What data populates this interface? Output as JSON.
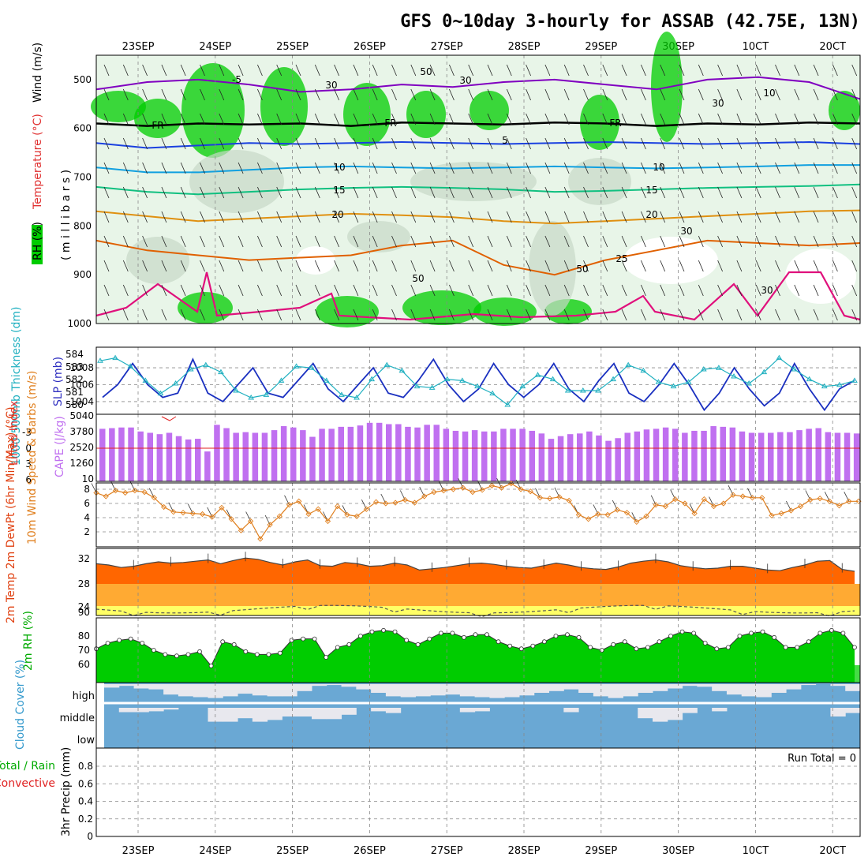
{
  "title": "GFS 0~10day 3-hourly for ASSAB (42.75E, 13N)",
  "dates": [
    "23SEP",
    "24SEP",
    "25SEP",
    "26SEP",
    "27SEP",
    "28SEP",
    "29SEP",
    "30SEP",
    "1OCT",
    "2OCT"
  ],
  "date_labels_display": [
    "23SEP",
    "24SEP",
    "25SEP",
    "26SEP",
    "27SEP",
    "28SEP",
    "29SEP",
    "30SEP",
    "10CT",
    "20CT"
  ],
  "colors": {
    "rh_green": "#00cc00",
    "rh_light": "#e8f5e8",
    "rh_gray": "#c8d8c8",
    "temp_m5_purple": "#8000c0",
    "temp_fr": "#000000",
    "temp_5": "#1a40e0",
    "temp_10": "#10a0e0",
    "temp_15": "#10c080",
    "temp_20": "#e09010",
    "temp_25": "#e06000",
    "rh_contour": "#e0107c",
    "slp": "#1a30c0",
    "thickness": "#20b0c0",
    "cape_bar": "#c070f0",
    "lifted": "#e02020",
    "wind": "#e08020",
    "temp_fill": "#ff6600",
    "dew_fill": "#ffaa33",
    "low_fill": "#ffff66",
    "rh2m": "#00cc00",
    "rh2m_light": "#33ee33",
    "cloud": "#6aa8d4",
    "cloud_gap": "#e8e8ee"
  },
  "chart_data": [
    {
      "panel": "upper-air",
      "type": "contour",
      "ylabel_parts": [
        "RH (%)",
        "Temperature (°C)",
        "Wind (m/s)"
      ],
      "axis_label": "( m i l l i b a r s )",
      "y_ticks": [
        500,
        600,
        700,
        800,
        900,
        1000
      ],
      "ylim": [
        450,
        1000
      ],
      "contour_labels": [
        "-5",
        "FR",
        "FR",
        "FR",
        "5",
        "10",
        "10",
        "15",
        "15",
        "20",
        "20",
        "25",
        "30",
        "30",
        "50",
        "50",
        "30",
        "30",
        "50",
        "30",
        "10"
      ],
      "isotherms": [
        {
          "name": "-5",
          "level": [
            520,
            505,
            500,
            510,
            525,
            520,
            510,
            515,
            505,
            500,
            510,
            520,
            500,
            495,
            505,
            540
          ]
        },
        {
          "name": "FR",
          "level": [
            590,
            595,
            590,
            592,
            590,
            595,
            588,
            590,
            592,
            588,
            590,
            595,
            590,
            592,
            588,
            590
          ]
        },
        {
          "name": "5",
          "level": [
            630,
            640,
            635,
            630,
            632,
            630,
            628,
            630,
            632,
            630,
            628,
            630,
            632,
            630,
            628,
            632
          ]
        },
        {
          "name": "10",
          "level": [
            680,
            690,
            690,
            685,
            680,
            678,
            680,
            682,
            680,
            678,
            680,
            682,
            680,
            678,
            675,
            675
          ]
        },
        {
          "name": "15",
          "level": [
            720,
            730,
            735,
            730,
            725,
            722,
            720,
            722,
            725,
            730,
            728,
            725,
            722,
            720,
            718,
            715
          ]
        },
        {
          "name": "20",
          "level": [
            770,
            780,
            790,
            785,
            780,
            775,
            778,
            782,
            790,
            795,
            790,
            785,
            780,
            775,
            770,
            768
          ]
        },
        {
          "name": "25",
          "level": [
            830,
            850,
            860,
            870,
            865,
            860,
            840,
            830,
            880,
            900,
            870,
            850,
            830,
            835,
            840,
            835
          ]
        }
      ]
    },
    {
      "panel": "slp-thickness",
      "type": "line",
      "ylabel_left": "1000-500mb Thickness (dm)",
      "ylabel_right": "SLP (mb)",
      "left_ticks": [
        "584",
        "583",
        "582",
        "581",
        "580"
      ],
      "right_ticks": [
        "1008",
        "1006",
        "1004"
      ],
      "series": [
        {
          "name": "SLP (mb)",
          "values": [
            1004.5,
            1006,
            1008.5,
            1006,
            1004.5,
            1005,
            1009,
            1005,
            1004,
            1006,
            1008,
            1005,
            1004.5,
            1006.5,
            1008.5,
            1005.5,
            1004,
            1006,
            1008,
            1005,
            1004.5,
            1006.5,
            1009,
            1006,
            1004,
            1005.5,
            1008.5,
            1006,
            1004.5,
            1006,
            1008.5,
            1005.5,
            1004,
            1006.5,
            1008.5,
            1005,
            1004,
            1006,
            1008.5,
            1006,
            1003,
            1005,
            1008,
            1005.5,
            1003.5,
            1005,
            1008.5,
            1005.5,
            1003,
            1005.5,
            1006.5
          ]
        },
        {
          "name": "Thickness (dm)",
          "values": [
            583.6,
            583.8,
            583.2,
            582.2,
            581.3,
            582.0,
            583.0,
            583.3,
            582.8,
            581.5,
            581.0,
            581.2,
            582.2,
            583.2,
            583.1,
            582.2,
            581.2,
            581.0,
            582.3,
            583.3,
            582.9,
            581.8,
            581.7,
            582.3,
            582.2,
            581.8,
            581.3,
            580.5,
            581.8,
            582.6,
            582.3,
            581.5,
            581.5,
            581.5,
            582.3,
            583.3,
            582.9,
            582.1,
            581.8,
            582.1,
            583.0,
            583.1,
            582.5,
            582.0,
            582.8,
            583.8,
            583.0,
            582.3,
            581.8,
            581.9,
            582.2
          ]
        }
      ]
    },
    {
      "panel": "cape-lifted",
      "type": "bar",
      "ylabel_left": "Lifted Index",
      "ylabel_right": "CAPE (J/kg)",
      "left_ticks": [
        "-3",
        "0",
        "3",
        "6"
      ],
      "right_ticks": [
        "5040",
        "3780",
        "2520",
        "1260",
        "10"
      ],
      "cape_values": [
        3950,
        4000,
        4050,
        4050,
        3750,
        3650,
        3550,
        3650,
        3400,
        3150,
        3200,
        2250,
        4250,
        4000,
        3650,
        3700,
        3650,
        3650,
        3850,
        4150,
        4050,
        3850,
        3350,
        3950,
        3950,
        4100,
        4100,
        4200,
        4400,
        4400,
        4300,
        4300,
        4100,
        4050,
        4250,
        4250,
        3950,
        3800,
        3750,
        3850,
        3750,
        3750,
        3950,
        3950,
        3950,
        3800,
        3600,
        3200,
        3400,
        3550,
        3600,
        3750,
        3450,
        3050,
        3250,
        3650,
        3750,
        3900,
        3950,
        4050,
        3950,
        3650,
        3800,
        3800,
        4150,
        4100,
        4050,
        3750,
        3650,
        3650,
        3650,
        3700,
        3700,
        3850,
        3950,
        4000,
        3700,
        3650,
        3650,
        3600
      ]
    },
    {
      "panel": "wind",
      "type": "line",
      "ylabel": "10m Wind Speed & Barbs (m/s)",
      "y_ticks": [
        "8",
        "6",
        "4",
        "2"
      ],
      "values": [
        7.5,
        7.0,
        7.8,
        7.5,
        7.8,
        7.6,
        6.8,
        5.5,
        4.8,
        4.7,
        4.6,
        4.5,
        4.1,
        5.4,
        3.8,
        2.2,
        3.5,
        1.0,
        3.0,
        4.2,
        5.8,
        6.3,
        4.5,
        5.2,
        3.5,
        5.6,
        4.4,
        4.2,
        5.2,
        6.2,
        6.0,
        6.1,
        6.5,
        6.1,
        7.0,
        7.6,
        7.8,
        8.0,
        8.2,
        7.6,
        7.9,
        8.5,
        8.2,
        8.8,
        8.0,
        7.7,
        6.8,
        6.7,
        6.9,
        6.4,
        4.4,
        3.8,
        4.5,
        4.4,
        5.1,
        4.7,
        3.4,
        4.2,
        5.8,
        5.6,
        6.6,
        6.0,
        4.6,
        6.6,
        5.6,
        6.0,
        7.2,
        7.0,
        6.8,
        6.8,
        4.3,
        4.6,
        5.0,
        5.6,
        6.5,
        6.7,
        6.3,
        5.7,
        6.3,
        6.3
      ]
    },
    {
      "panel": "temp-dewpoint",
      "type": "area",
      "ylabel": "2m Temp 2m DewPt (6hr Min/Max) (°C)",
      "y_ticks": [
        "32",
        "28",
        "24",
        "90"
      ],
      "temp": [
        31.2,
        31.0,
        30.6,
        30.8,
        31.2,
        31.5,
        31.3,
        31.4,
        31.6,
        31.8,
        31.2,
        31.7,
        32.1,
        31.9,
        31.4,
        31.0,
        31.5,
        31.8,
        30.9,
        30.8,
        31.4,
        31.2,
        30.8,
        30.9,
        31.3,
        31.0,
        30.2,
        30.4,
        30.6,
        30.9,
        31.2,
        31.3,
        31.1,
        30.8,
        30.6,
        30.5,
        30.9,
        31.3,
        31.0,
        30.6,
        30.4,
        30.3,
        30.7,
        31.3,
        31.6,
        31.8,
        31.5,
        30.9,
        30.6,
        30.4,
        30.5,
        30.8,
        30.8,
        30.5,
        30.2,
        30.1,
        30.6,
        31.0,
        31.6,
        31.7,
        30.3,
        30.0
      ]
    },
    {
      "panel": "rh2m",
      "type": "area",
      "ylabel": "2m RH (%)",
      "y_ticks": [
        "80",
        "70",
        "60"
      ],
      "values": [
        71,
        75,
        77,
        78,
        75,
        70,
        67,
        66,
        67,
        69,
        59,
        76,
        74,
        69,
        67,
        67,
        68,
        77,
        78,
        78,
        65,
        72,
        74,
        80,
        83,
        84,
        83,
        77,
        74,
        78,
        82,
        82,
        79,
        81,
        81,
        76,
        73,
        71,
        73,
        76,
        80,
        81,
        79,
        72,
        70,
        74,
        76,
        71,
        72,
        76,
        80,
        83,
        82,
        75,
        71,
        72,
        80,
        82,
        83,
        79,
        72,
        72,
        76,
        82,
        84,
        82,
        72
      ]
    },
    {
      "panel": "cloud",
      "type": "heatmap",
      "ylabel": "Cloud Cover (%)",
      "levels": [
        "high",
        "middle",
        "low"
      ],
      "high_fill": [
        0.8,
        0.9,
        0.75,
        0.7,
        0.4,
        0.3,
        0.25,
        0.2,
        0.3,
        0.45,
        0.35,
        0.3,
        0.3,
        0.6,
        0.9,
        0.95,
        0.85,
        0.7,
        0.5,
        0.3,
        0.25,
        0.3,
        0.35,
        0.4,
        0.3,
        0.25,
        0.2,
        0.25,
        0.35,
        0.5,
        0.6,
        0.7,
        0.5,
        0.3,
        0.2,
        0.3,
        0.5,
        0.6,
        0.75,
        0.9,
        0.85,
        0.6,
        0.4,
        0.3,
        0.25,
        0.5,
        0.7,
        0.95,
        1.0,
        0.9,
        0.6
      ],
      "middle_fill": [
        1.0,
        0.75,
        0.75,
        0.8,
        0.9,
        1.0,
        1.0,
        0.2,
        0.2,
        0.4,
        0.2,
        0.3,
        0.5,
        0.5,
        0.35,
        0.35,
        0.6,
        1.0,
        0.8,
        0.7,
        1.0,
        1.0,
        1.0,
        1.0,
        0.75,
        0.8,
        1.0,
        1.0,
        1.0,
        1.0,
        1.0,
        0.75,
        1.0,
        1.0,
        1.0,
        1.0,
        0.4,
        0.2,
        0.3,
        0.7,
        1.0,
        0.8,
        1.0,
        1.0,
        1.0,
        1.0,
        1.0,
        1.0,
        1.0,
        0.5,
        0.7
      ]
    },
    {
      "panel": "precip",
      "type": "bar",
      "ylabel": "3hr Precip (mm)",
      "legend_left": "Total / Rain",
      "legend_left2": "Convective",
      "run_total": "Run Total = 0",
      "y_ticks": [
        "0.8",
        "0.6",
        "0.4",
        "0.2",
        "0"
      ],
      "values": []
    }
  ]
}
